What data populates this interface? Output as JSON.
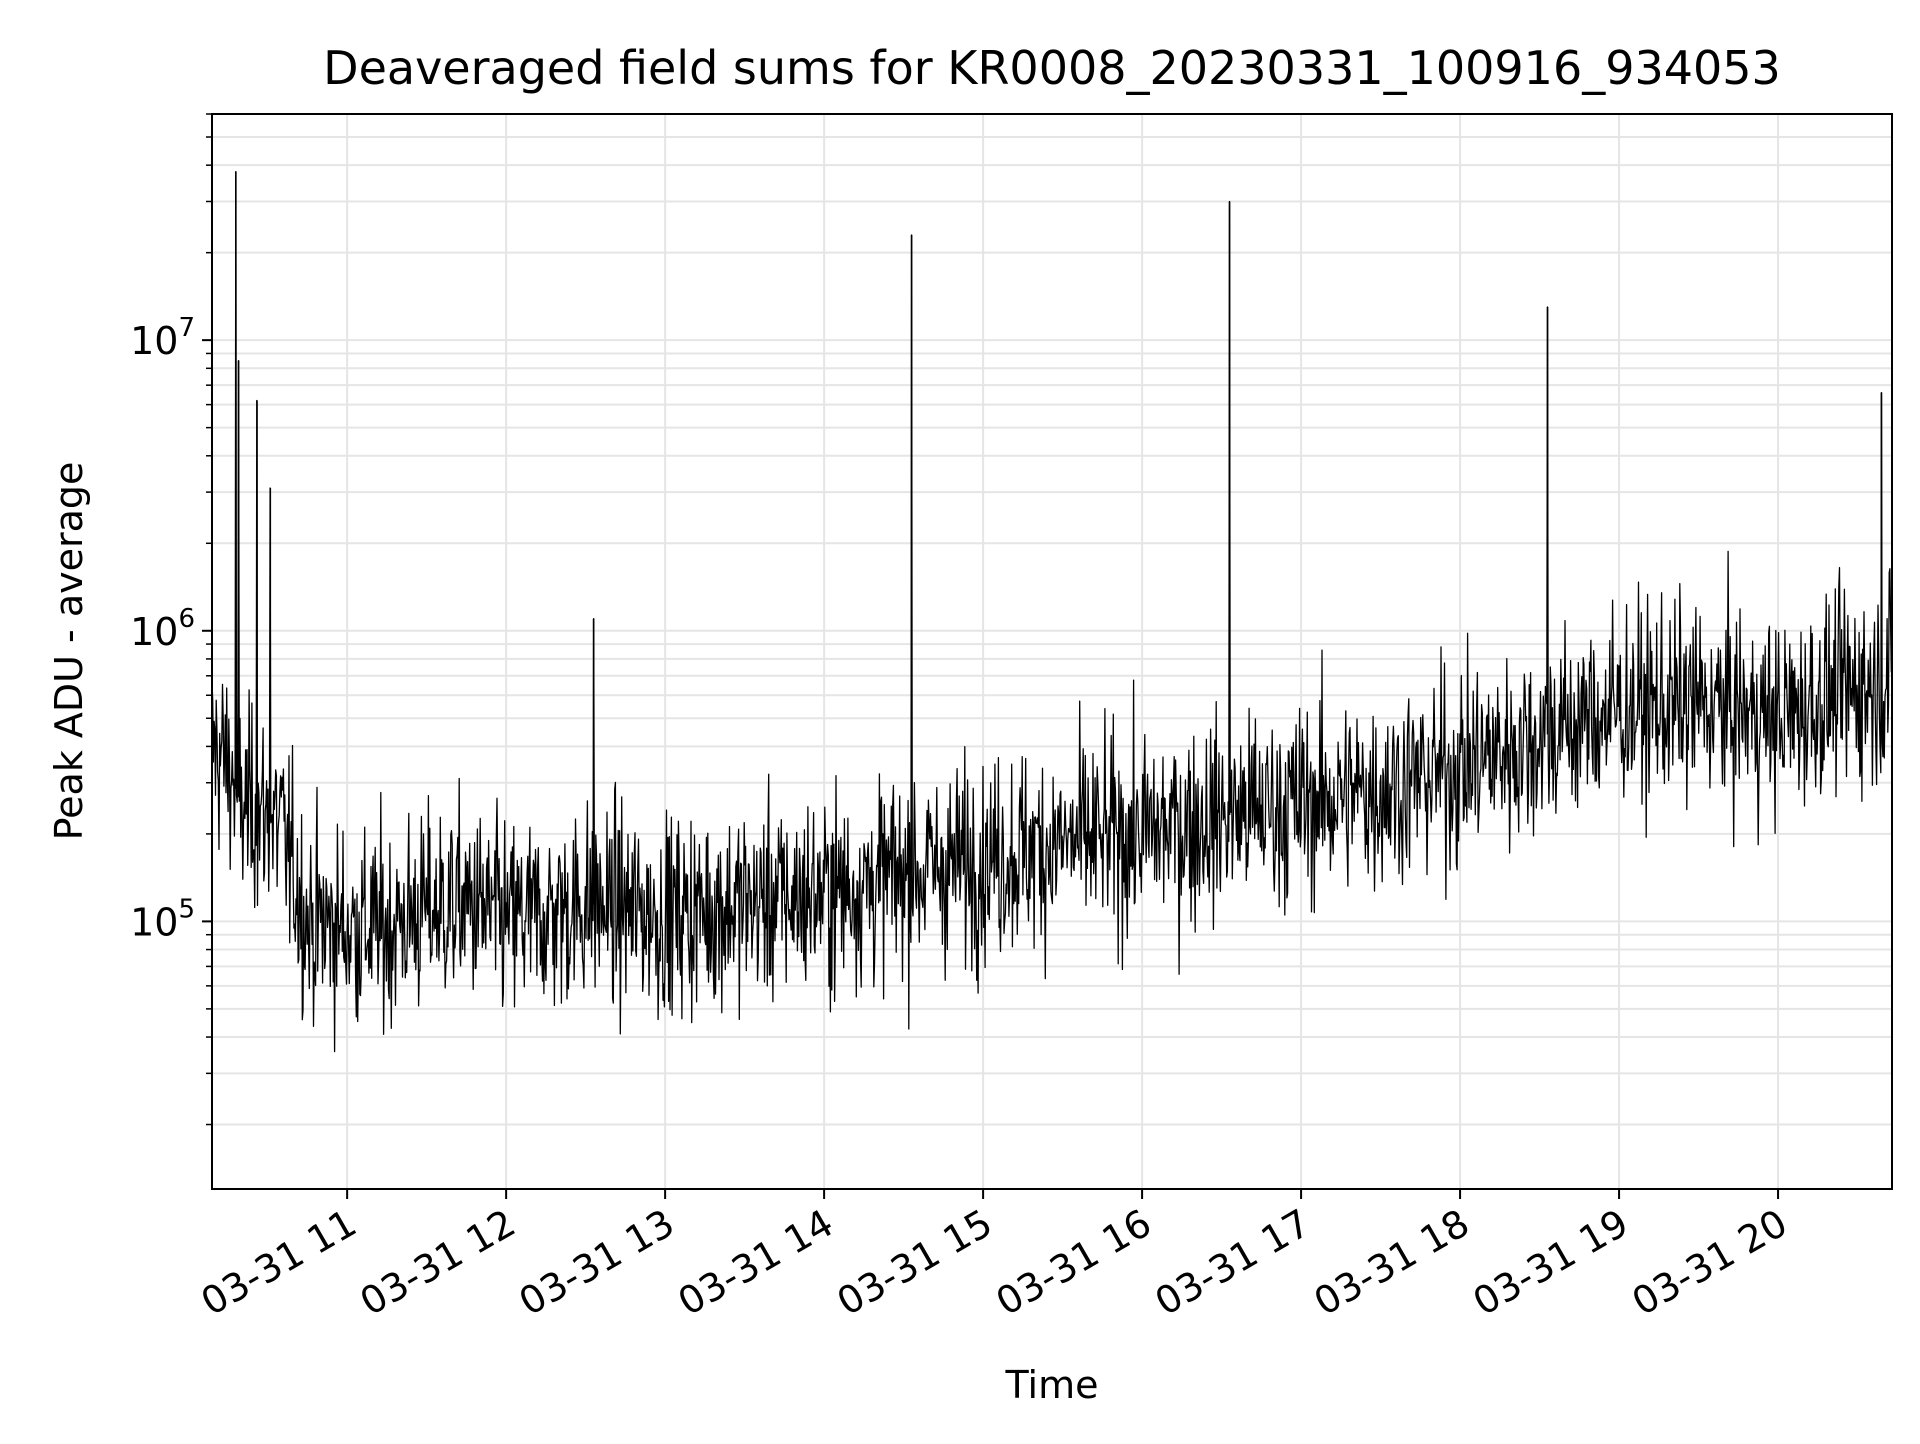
{
  "figure": {
    "title": "Deaveraged field sums for KR0008_20230331_100916_934053"
  },
  "chart_data": {
    "type": "line",
    "title": "Deaveraged field sums for KR0008_20230331_100916_934053",
    "xlabel": "Time",
    "ylabel": "Peak ADU - average",
    "yscale": "log",
    "xlim": [
      "2023-03-31 10:09",
      "2023-03-31 20:43"
    ],
    "ylim": [
      12000,
      60000000
    ],
    "x_ticks": [
      "03-31 11",
      "03-31 12",
      "03-31 13",
      "03-31 14",
      "03-31 15",
      "03-31 16",
      "03-31 17",
      "03-31 18",
      "03-31 19",
      "03-31 20"
    ],
    "y_ticks": [
      {
        "base": "10",
        "exp": "5"
      },
      {
        "base": "10",
        "exp": "6"
      },
      {
        "base": "10",
        "exp": "7"
      }
    ],
    "grid": true,
    "line_color": "#000000",
    "grid_color": "#e5e5e5",
    "series": [
      {
        "x": [
          "2023-03-31 10:09",
          "2023-03-31 10:15",
          "2023-03-31 10:20",
          "2023-03-31 10:25",
          "2023-03-31 10:35",
          "2023-03-31 10:45",
          "2023-03-31 11:00",
          "2023-03-31 11:15",
          "2023-03-31 11:30",
          "2023-03-31 11:45",
          "2023-03-31 12:00",
          "2023-03-31 12:15",
          "2023-03-31 12:30",
          "2023-03-31 12:45",
          "2023-03-31 13:00",
          "2023-03-31 13:30",
          "2023-03-31 14:00",
          "2023-03-31 14:30",
          "2023-03-31 15:00",
          "2023-03-31 15:30",
          "2023-03-31 16:00",
          "2023-03-31 16:30",
          "2023-03-31 17:00",
          "2023-03-31 17:30",
          "2023-03-31 18:00",
          "2023-03-31 18:30",
          "2023-03-31 19:00",
          "2023-03-31 19:30",
          "2023-03-31 20:00",
          "2023-03-31 20:25",
          "2023-03-31 20:43"
        ],
        "y": [
          400000,
          350000,
          250000,
          240000,
          210000,
          100000,
          95000,
          95000,
          110000,
          115000,
          100000,
          105000,
          115000,
          110000,
          105000,
          115000,
          125000,
          145000,
          165000,
          185000,
          200000,
          230000,
          255000,
          285000,
          340000,
          430000,
          540000,
          560000,
          500000,
          620000,
          680000
        ]
      }
    ],
    "spikes": [
      {
        "x": "2023-03-31 10:18",
        "y": 38000000
      },
      {
        "x": "2023-03-31 10:19",
        "y": 8500000
      },
      {
        "x": "2023-03-31 10:26",
        "y": 6200000
      },
      {
        "x": "2023-03-31 10:31",
        "y": 3100000
      },
      {
        "x": "2023-03-31 12:33",
        "y": 1100000
      },
      {
        "x": "2023-03-31 14:33",
        "y": 23000000
      },
      {
        "x": "2023-03-31 16:33",
        "y": 30000000
      },
      {
        "x": "2023-03-31 18:33",
        "y": 13000000
      },
      {
        "x": "2023-03-31 20:39",
        "y": 6600000
      }
    ]
  }
}
